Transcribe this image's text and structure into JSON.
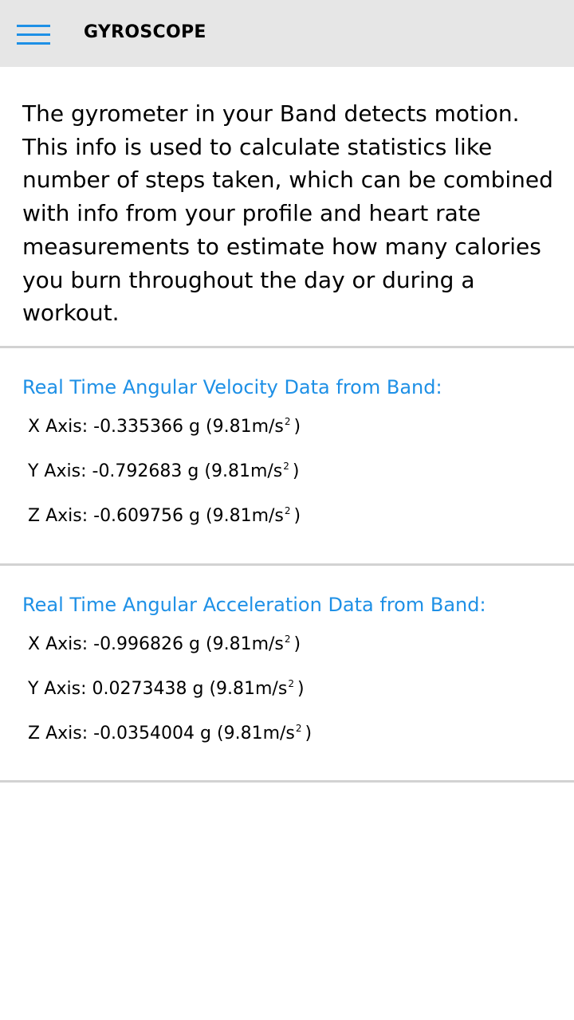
{
  "header": {
    "title": "GYROSCOPE",
    "menu_icon": "hamburger-menu-icon"
  },
  "description": "The gyrometer in your Band detects motion. This info is used to calculate statistics like number of steps taken, which can be combined with info from your profile and heart rate measurements to estimate how many calories you burn throughout the day or during a workout.",
  "colors": {
    "accent": "#1e90e6",
    "header_bg": "#e6e6e6",
    "divider": "#d2d2d2"
  },
  "velocity": {
    "title": "Real Time Angular Velocity Data from Band:",
    "x_label": "X Axis:",
    "x_value": "-0.335366 g",
    "y_label": "Y Axis:",
    "y_value": "-0.792683 g",
    "z_label": "Z Axis:",
    "z_value": "-0.609756 g"
  },
  "acceleration": {
    "title": "Real Time Angular Acceleration Data from Band:",
    "x_label": "X Axis:",
    "x_value": "-0.996826 g",
    "y_label": "Y Axis:",
    "y_value": "0.0273438 g",
    "z_label": "Z Axis:",
    "z_value": "-0.0354004 g"
  },
  "unit": {
    "base": "(9.81m/s",
    "exponent": "2",
    "close": ")"
  }
}
